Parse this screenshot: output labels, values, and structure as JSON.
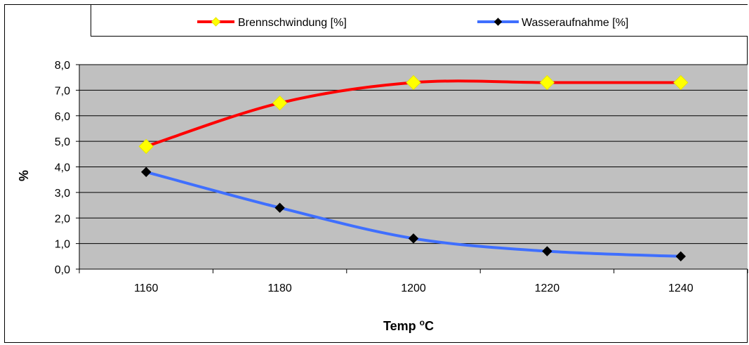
{
  "chart_data": {
    "type": "line",
    "xlabel": "Temp °C",
    "xlabel_main": "Temp ",
    "xlabel_sup": "o",
    "xlabel_unit": "C",
    "ylabel": "%",
    "x": [
      1160,
      1180,
      1200,
      1220,
      1240
    ],
    "x_tick_labels": [
      "1160",
      "1180",
      "1200",
      "1220",
      "1240"
    ],
    "ylim": [
      0,
      8
    ],
    "y_ticks": [
      0,
      1,
      2,
      3,
      4,
      5,
      6,
      7,
      8
    ],
    "y_tick_labels": [
      "0,0",
      "1,0",
      "2,0",
      "3,0",
      "4,0",
      "5,0",
      "6,0",
      "7,0",
      "8,0"
    ],
    "grid": "horizontal",
    "plot_background": "#c0c0c0",
    "legend_position": "top",
    "series": [
      {
        "name": "Brennschwindung [%]",
        "values": [
          4.8,
          6.5,
          7.3,
          7.3,
          7.3
        ],
        "line_color": "#ff0000",
        "marker": "diamond",
        "marker_color": "#ffff00"
      },
      {
        "name": "Wasseraufnahme [%]",
        "values": [
          3.8,
          2.4,
          1.2,
          0.7,
          0.5
        ],
        "line_color": "#3f6fff",
        "marker": "diamond",
        "marker_color": "#000000"
      }
    ]
  }
}
